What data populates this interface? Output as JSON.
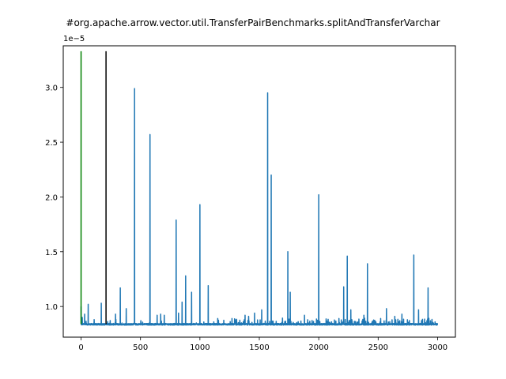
{
  "chart_data": {
    "type": "line",
    "title": "#org.apache.arrow.vector.util.TransferPairBenchmarks.splitAndTransferVarchar",
    "xlabel": "",
    "ylabel": "",
    "y_scale_label": "1e−5",
    "xlim": [
      -150,
      3150
    ],
    "ylim": [
      0.72,
      3.38
    ],
    "x_ticks": [
      0,
      500,
      1000,
      1500,
      2000,
      2500,
      3000
    ],
    "x_tick_labels": [
      "0",
      "500",
      "1000",
      "1500",
      "2000",
      "2500",
      "3000"
    ],
    "y_ticks": [
      1.0,
      1.5,
      2.0,
      2.5,
      3.0
    ],
    "y_tick_labels": [
      "1.0",
      "1.5",
      "2.0",
      "2.5",
      "3.0"
    ],
    "grid": false,
    "baseline": 0.83,
    "n_points": 3000,
    "spikes": [
      {
        "x": 0,
        "y": 1.0
      },
      {
        "x": 10,
        "y": 0.9
      },
      {
        "x": 30,
        "y": 0.93
      },
      {
        "x": 60,
        "y": 1.02
      },
      {
        "x": 110,
        "y": 0.88
      },
      {
        "x": 170,
        "y": 1.03
      },
      {
        "x": 290,
        "y": 0.93
      },
      {
        "x": 330,
        "y": 1.17
      },
      {
        "x": 380,
        "y": 0.98
      },
      {
        "x": 450,
        "y": 2.99
      },
      {
        "x": 580,
        "y": 2.57
      },
      {
        "x": 640,
        "y": 0.92
      },
      {
        "x": 670,
        "y": 0.93
      },
      {
        "x": 700,
        "y": 0.92
      },
      {
        "x": 800,
        "y": 1.79
      },
      {
        "x": 820,
        "y": 0.94
      },
      {
        "x": 850,
        "y": 1.04
      },
      {
        "x": 880,
        "y": 1.28
      },
      {
        "x": 930,
        "y": 1.13
      },
      {
        "x": 1000,
        "y": 1.93
      },
      {
        "x": 1070,
        "y": 1.19
      },
      {
        "x": 1150,
        "y": 0.89
      },
      {
        "x": 1270,
        "y": 0.89
      },
      {
        "x": 1380,
        "y": 0.92
      },
      {
        "x": 1410,
        "y": 0.91
      },
      {
        "x": 1460,
        "y": 0.94
      },
      {
        "x": 1520,
        "y": 0.97
      },
      {
        "x": 1570,
        "y": 2.95
      },
      {
        "x": 1600,
        "y": 2.2
      },
      {
        "x": 1740,
        "y": 1.5
      },
      {
        "x": 1760,
        "y": 1.13
      },
      {
        "x": 1880,
        "y": 0.92
      },
      {
        "x": 2000,
        "y": 2.02
      },
      {
        "x": 2170,
        "y": 0.89
      },
      {
        "x": 2210,
        "y": 1.18
      },
      {
        "x": 2240,
        "y": 1.46
      },
      {
        "x": 2270,
        "y": 0.97
      },
      {
        "x": 2380,
        "y": 0.92
      },
      {
        "x": 2410,
        "y": 1.39
      },
      {
        "x": 2570,
        "y": 0.98
      },
      {
        "x": 2640,
        "y": 0.91
      },
      {
        "x": 2700,
        "y": 0.93
      },
      {
        "x": 2800,
        "y": 1.47
      },
      {
        "x": 2840,
        "y": 0.97
      },
      {
        "x": 2920,
        "y": 1.17
      },
      {
        "x": 2940,
        "y": 0.87
      }
    ],
    "vertical_lines": [
      {
        "x": 0,
        "y_from": 0.84,
        "y_to": 3.33,
        "color": "#008000"
      },
      {
        "x": 210,
        "y_from": 0.84,
        "y_to": 3.33,
        "color": "#000000"
      }
    ],
    "series": [
      {
        "values_ref": "spikes",
        "color": "#1f77b4"
      }
    ]
  }
}
